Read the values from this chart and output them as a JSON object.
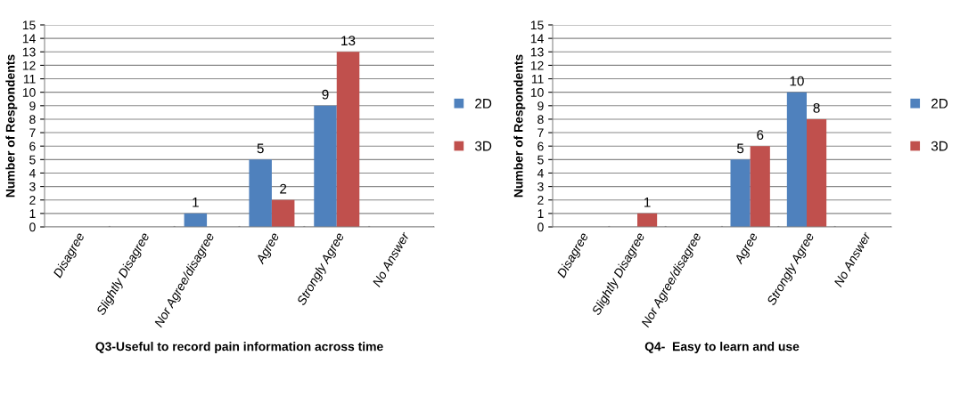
{
  "chart_data": [
    {
      "type": "bar",
      "xlabel": "Q3-Useful to record pain information across time",
      "ylabel": "Number of Respondents",
      "categories": [
        "Disagree",
        "Slightly Disagree",
        "Nor Agree/disagree",
        "Agree",
        "Strongly Agree",
        "No Answer"
      ],
      "series": [
        {
          "name": "2D",
          "color": "#4f81bd",
          "values": [
            0,
            0,
            1,
            5,
            9,
            0
          ],
          "value_labels": [
            null,
            null,
            "1",
            "5",
            "9",
            null
          ]
        },
        {
          "name": "3D",
          "color": "#c0504d",
          "values": [
            0,
            0,
            0,
            2,
            13,
            0
          ],
          "value_labels": [
            null,
            null,
            null,
            "2",
            "13",
            null
          ]
        }
      ],
      "ylim": [
        0,
        15
      ],
      "yticks": [
        0,
        1,
        2,
        3,
        4,
        5,
        6,
        7,
        8,
        9,
        10,
        11,
        12,
        13,
        14,
        15
      ],
      "grid": "y",
      "legend": "right"
    },
    {
      "type": "bar",
      "xlabel": "Q4-  Easy to learn and use",
      "ylabel": "Number of Respondents",
      "categories": [
        "Disagree",
        "Slightly Disagree",
        "Nor Agree/disagree",
        "Agree",
        "Strongly Agree",
        "No Answer"
      ],
      "series": [
        {
          "name": "2D",
          "color": "#4f81bd",
          "values": [
            0,
            0,
            0,
            5,
            10,
            0
          ],
          "value_labels": [
            null,
            null,
            null,
            "5",
            "10",
            null
          ]
        },
        {
          "name": "3D",
          "color": "#c0504d",
          "values": [
            0,
            1,
            0,
            6,
            8,
            0
          ],
          "value_labels": [
            null,
            "1",
            null,
            "6",
            "8",
            null
          ]
        }
      ],
      "ylim": [
        0,
        15
      ],
      "yticks": [
        0,
        1,
        2,
        3,
        4,
        5,
        6,
        7,
        8,
        9,
        10,
        11,
        12,
        13,
        14,
        15
      ],
      "grid": "y",
      "legend": "right"
    }
  ]
}
